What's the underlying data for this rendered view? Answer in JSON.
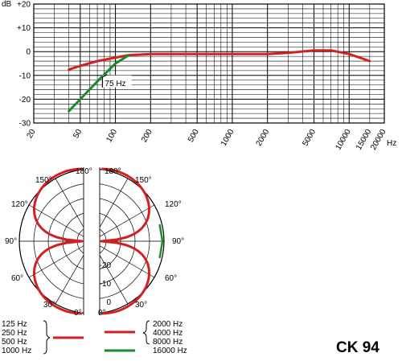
{
  "chart_data": [
    {
      "type": "line",
      "xlabel": "Hz",
      "ylabel": "dB",
      "x_scale": "log",
      "xlim": [
        20,
        20000
      ],
      "ylim": [
        -30,
        20
      ],
      "x_tick_labels": [
        "20",
        "50",
        "100",
        "200",
        "500",
        "1000",
        "2000",
        "5000",
        "10000",
        "15000",
        "20000"
      ],
      "y_tick_labels": [
        "+20",
        "+10",
        "0",
        "-10",
        "-20",
        "-30"
      ],
      "grid": true,
      "series": [
        {
          "color": "#d42020",
          "x": [
            40,
            50,
            70,
            100,
            130,
            200,
            500,
            1000,
            2000,
            3000,
            5000,
            7000,
            10000,
            15000
          ],
          "y": [
            -7.5,
            -6,
            -4,
            -2.5,
            -1.5,
            -1,
            -1,
            -1,
            -1,
            -0.5,
            0.5,
            0.5,
            -1,
            -4
          ]
        },
        {
          "color": "#1a8a2a",
          "x": [
            40,
            50,
            75,
            100,
            130
          ],
          "y": [
            -25,
            -20,
            -11,
            -5,
            -1.5
          ]
        }
      ],
      "annotations": [
        {
          "text": "75 Hz",
          "x": 75,
          "y": -11
        }
      ]
    },
    {
      "type": "polar",
      "angle_labels_left": [
        "180°",
        "150°",
        "120°",
        "90°",
        "60°",
        "30°",
        "0°"
      ],
      "angle_labels_right": [
        "180°",
        "150°",
        "120°",
        "90°",
        "60°",
        "30°",
        "0°"
      ],
      "radial_labels": [
        "-20",
        "-10",
        "0"
      ],
      "radial_range_db": [
        -25,
        0
      ],
      "pattern": "figure-8",
      "series_left": {
        "color": "#d42020",
        "frequencies": [
          "125 Hz",
          "250 Hz",
          "500 Hz",
          "1000 Hz"
        ]
      },
      "series_right": [
        {
          "color": "#d42020",
          "frequencies": [
            "2000 Hz",
            "4000 Hz",
            "8000 Hz"
          ]
        },
        {
          "color": "#1a8a2a",
          "frequencies": [
            "16000 Hz"
          ]
        }
      ]
    }
  ],
  "legend": {
    "left": [
      "125 Hz",
      "250 Hz",
      "500 Hz",
      "1000 Hz"
    ],
    "right_red": [
      "2000 Hz",
      "4000 Hz",
      "8000 Hz"
    ],
    "right_green": [
      "16000 Hz"
    ]
  },
  "model": "CK 94",
  "colors": {
    "red": "#d42020",
    "green": "#1a8a2a",
    "grid": "#000000"
  }
}
